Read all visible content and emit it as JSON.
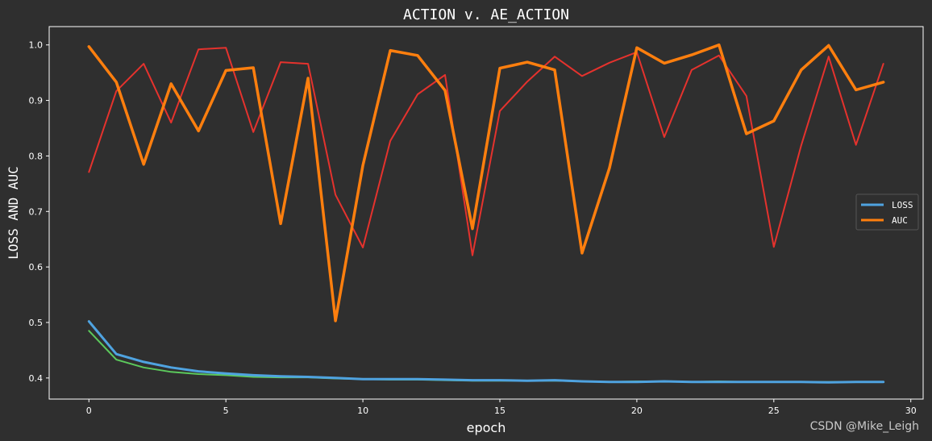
{
  "chart_data": {
    "type": "line",
    "title": "ACTION v. AE_ACTION",
    "xlabel": "epoch",
    "ylabel": "LOSS AND AUC",
    "xlim": [
      -1.45,
      30.45
    ],
    "ylim": [
      0.362,
      1.033
    ],
    "xticks": [
      0,
      5,
      10,
      15,
      20,
      25,
      30
    ],
    "yticks": [
      0.4,
      0.5,
      0.6,
      0.7,
      0.8,
      0.9,
      1.0
    ],
    "ytick_labels": [
      "0.4",
      "0.5",
      "0.6",
      "0.7",
      "0.8",
      "0.9",
      "1.0"
    ],
    "grid": false,
    "legend_position": "center-right",
    "series": [
      {
        "name": "LOSS",
        "color": "#4fa3e0",
        "width": 3,
        "x": [
          0,
          1,
          2,
          3,
          4,
          5,
          6,
          7,
          8,
          9,
          10,
          11,
          12,
          13,
          14,
          15,
          16,
          17,
          18,
          19,
          20,
          21,
          22,
          23,
          24,
          25,
          26,
          27,
          28,
          29
        ],
        "values": [
          0.502,
          0.443,
          0.429,
          0.419,
          0.412,
          0.408,
          0.405,
          0.403,
          0.402,
          0.4,
          0.398,
          0.398,
          0.398,
          0.397,
          0.396,
          0.396,
          0.395,
          0.396,
          0.394,
          0.393,
          0.393,
          0.394,
          0.393,
          0.393,
          0.393,
          0.393,
          0.393,
          0.392,
          0.393,
          0.393
        ]
      },
      {
        "name": "AUC",
        "color": "#ff7f0e",
        "width": 3.5,
        "x": [
          0,
          1,
          2,
          3,
          4,
          5,
          6,
          7,
          8,
          9,
          10,
          11,
          12,
          13,
          14,
          15,
          16,
          17,
          18,
          19,
          20,
          21,
          22,
          23,
          24,
          25,
          26,
          27,
          28,
          29
        ],
        "values": [
          0.997,
          0.933,
          0.785,
          0.93,
          0.845,
          0.954,
          0.959,
          0.678,
          0.94,
          0.503,
          0.783,
          0.99,
          0.981,
          0.918,
          0.669,
          0.958,
          0.969,
          0.955,
          0.625,
          0.778,
          0.995,
          0.967,
          0.982,
          1.0,
          0.84,
          0.863,
          0.955,
          0.999,
          0.919,
          0.933
        ]
      },
      {
        "name": "",
        "color": "#5cc95c",
        "width": 2,
        "x": [
          0,
          1,
          2,
          3,
          4,
          5,
          6,
          7,
          8,
          9,
          10,
          11,
          12,
          13,
          14,
          15,
          16,
          17,
          18,
          19,
          20,
          21,
          22,
          23,
          24,
          25,
          26,
          27,
          28,
          29
        ],
        "values": [
          0.485,
          0.433,
          0.419,
          0.411,
          0.407,
          0.405,
          0.402,
          0.401,
          0.401,
          0.399,
          0.398,
          0.397,
          0.397,
          0.396,
          0.395,
          0.395,
          0.395,
          0.395,
          0.394,
          0.393,
          0.394,
          0.394,
          0.393,
          0.394,
          0.393,
          0.393,
          0.393,
          0.393,
          0.393,
          0.393
        ]
      },
      {
        "name": "",
        "color": "#e5322d",
        "width": 2,
        "x": [
          0,
          1,
          2,
          3,
          4,
          5,
          6,
          7,
          8,
          9,
          10,
          11,
          12,
          13,
          14,
          15,
          16,
          17,
          18,
          19,
          20,
          21,
          22,
          23,
          24,
          25,
          26,
          27,
          28,
          29
        ],
        "values": [
          0.771,
          0.917,
          0.966,
          0.86,
          0.992,
          0.995,
          0.843,
          0.969,
          0.966,
          0.73,
          0.635,
          0.827,
          0.911,
          0.946,
          0.621,
          0.881,
          0.934,
          0.979,
          0.944,
          0.968,
          0.987,
          0.834,
          0.955,
          0.981,
          0.908,
          0.636,
          0.819,
          0.979,
          0.82,
          0.966
        ]
      }
    ]
  },
  "watermark": "CSDN @Mike_Leigh"
}
